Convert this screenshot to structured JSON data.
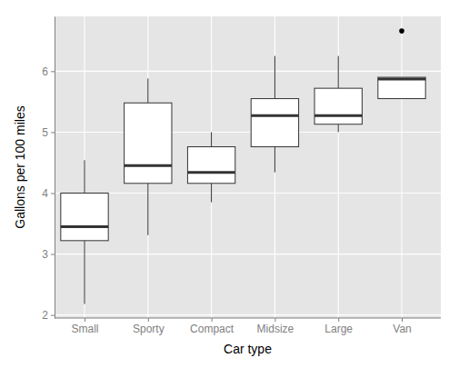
{
  "chart_data": {
    "type": "box",
    "x_label": "Car type",
    "y_label": "Gallons per 100 miles",
    "categories": [
      "Small",
      "Sporty",
      "Compact",
      "Midsize",
      "Large",
      "Van"
    ],
    "whisker_low": [
      2.18,
      3.31,
      3.85,
      4.34,
      5.0,
      5.55
    ],
    "q1": [
      3.22,
      4.16,
      4.16,
      4.76,
      5.13,
      5.55
    ],
    "median": [
      3.45,
      4.45,
      4.34,
      5.27,
      5.27,
      5.87
    ],
    "q3": [
      4.0,
      5.48,
      4.76,
      5.55,
      5.72,
      5.9
    ],
    "whisker_high": [
      4.54,
      5.88,
      5.0,
      6.25,
      6.25,
      5.9
    ],
    "outliers": [
      [],
      [],
      [],
      [],
      [],
      [
        6.66
      ]
    ],
    "color": "#ffffff",
    "ylim": [
      1.95,
      6.9
    ],
    "yticks": [
      2,
      3,
      4,
      5,
      6
    ],
    "grid": true
  }
}
